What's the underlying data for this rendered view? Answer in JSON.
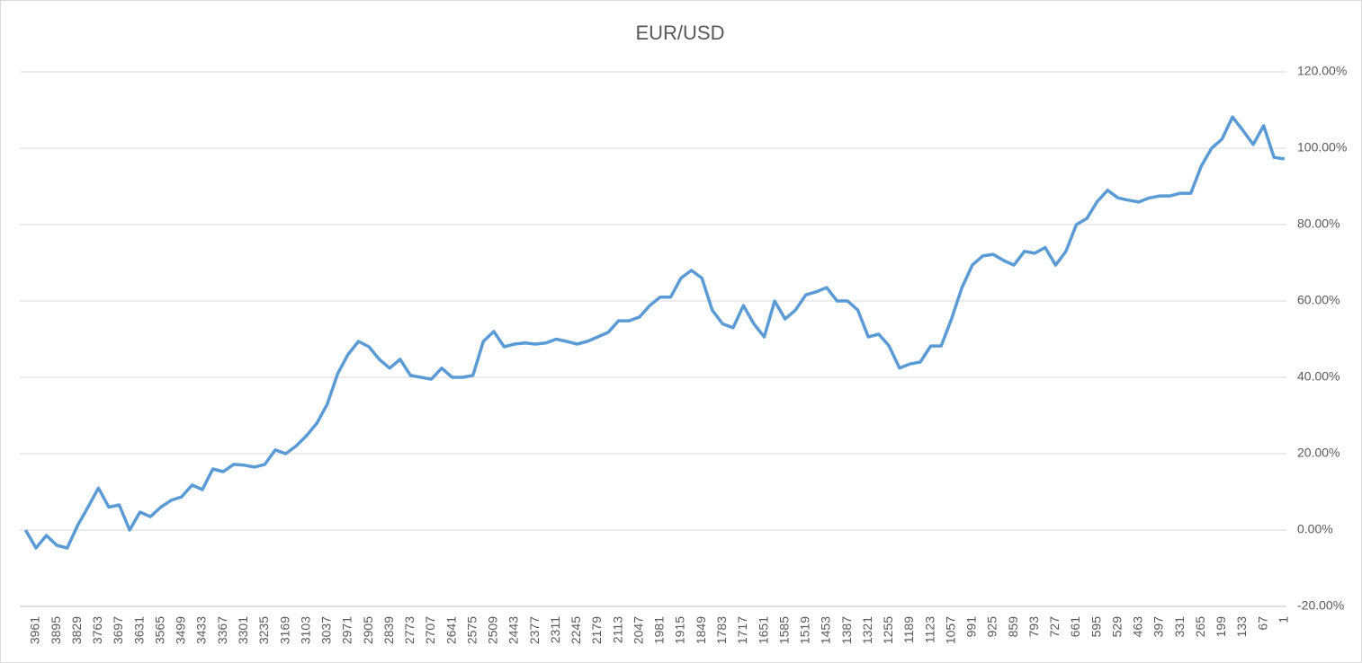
{
  "chart_data": {
    "type": "line",
    "title": "EUR/USD",
    "categories": [
      null,
      "3961",
      null,
      "3895",
      null,
      "3829",
      null,
      "3763",
      null,
      "3697",
      null,
      "3631",
      null,
      "3565",
      null,
      "3499",
      null,
      "3433",
      null,
      "3367",
      null,
      "3301",
      null,
      "3235",
      null,
      "3169",
      null,
      "3103",
      null,
      "3037",
      null,
      "2971",
      null,
      "2905",
      null,
      "2839",
      null,
      "2773",
      null,
      "2707",
      null,
      "2641",
      null,
      "2575",
      null,
      "2509",
      null,
      "2443",
      null,
      "2377",
      null,
      "2311",
      null,
      "2245",
      null,
      "2179",
      null,
      "2113",
      null,
      "2047",
      null,
      "1981",
      null,
      "1915",
      null,
      "1849",
      null,
      "1783",
      null,
      "1717",
      null,
      "1651",
      null,
      "1585",
      null,
      "1519",
      null,
      "1453",
      null,
      "1387",
      null,
      "1321",
      null,
      "1255",
      null,
      "1189",
      null,
      "1123",
      null,
      "1057",
      null,
      "991",
      null,
      "925",
      null,
      "859",
      null,
      "793",
      null,
      "727",
      null,
      "661",
      null,
      "595",
      null,
      "529",
      null,
      "463",
      null,
      "397",
      null,
      "331",
      null,
      "265",
      null,
      "199",
      null,
      "133",
      null,
      "67",
      null,
      "1"
    ],
    "series": [
      {
        "name": "EUR/USD",
        "color": "#5b9bd5",
        "values": [
          0,
          -4.7,
          -1.4,
          -4,
          -4.7,
          1.2,
          6,
          11,
          6,
          6.6,
          0,
          4.7,
          3.5,
          6,
          7.8,
          8.7,
          11.8,
          10.6,
          16,
          15.3,
          17.2,
          17,
          16.5,
          17.2,
          21,
          20,
          22,
          24.7,
          28,
          33,
          41,
          46,
          49.4,
          48,
          44.7,
          42.4,
          44.7,
          40.5,
          40,
          39.5,
          42.4,
          40,
          40,
          40.5,
          49.4,
          52,
          48,
          48.7,
          49,
          48.7,
          49,
          50,
          49.4,
          48.7,
          49.4,
          50.6,
          51.8,
          54.8,
          54.8,
          55.8,
          58.8,
          61,
          61,
          66,
          68,
          66,
          57.6,
          54,
          53,
          58.8,
          54,
          50.6,
          60,
          55.3,
          57.6,
          61.6,
          62.4,
          63.5,
          60,
          60,
          57.6,
          50.6,
          51.3,
          48.2,
          42.4,
          43.5,
          44,
          48.2,
          48.2,
          55.3,
          63.5,
          69.4,
          71.8,
          72.2,
          70.6,
          69.4,
          73,
          72.5,
          74,
          69.4,
          73,
          80,
          81.6,
          86,
          89,
          87,
          86.4,
          85.9,
          87,
          87.5,
          87.5,
          88.2,
          88.2,
          95.3,
          100,
          102.4,
          108.2,
          104.7,
          101,
          105.9,
          97.6,
          97.2
        ]
      }
    ],
    "ylim": [
      -20,
      120
    ],
    "yticks": [
      {
        "value": -20,
        "label": "-20.00%"
      },
      {
        "value": 0,
        "label": "0.00%"
      },
      {
        "value": 20,
        "label": "20.00%"
      },
      {
        "value": 40,
        "label": "40.00%"
      },
      {
        "value": 60,
        "label": "60.00%"
      },
      {
        "value": 80,
        "label": "80.00%"
      },
      {
        "value": 100,
        "label": "100.00%"
      },
      {
        "value": 120,
        "label": "120.00%"
      }
    ],
    "grid": true
  }
}
